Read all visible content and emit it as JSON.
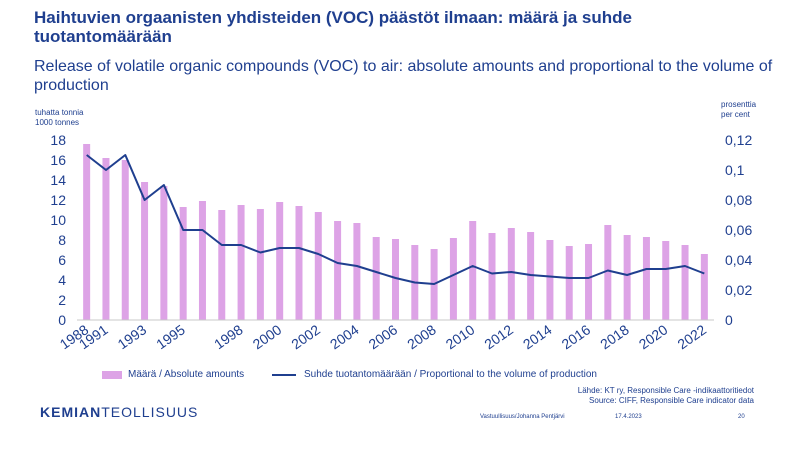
{
  "title_fi": "Haihtuvien orgaanisten yhdisteiden (VOC) päästöt ilmaan: määrä ja suhde tuotantomäärään",
  "title_en": "Release of volatile organic compounds (VOC) to air: absolute amounts and proportional to the volume of production",
  "left_unit": [
    "tuhatta tonnia",
    "1000 tonnes"
  ],
  "right_unit": [
    "prosenttia",
    "per cent"
  ],
  "legend": {
    "bars": "Määrä / Absolute amounts",
    "line": "Suhde tuotantomäärään / Proportional to the volume of production"
  },
  "source": {
    "line1": "Lähde: KT ry, Responsible Care -indikaattoritiedot",
    "line2": "Source: CIFF, Responsible Care indicator data"
  },
  "logo": {
    "bold": "KEMIAN",
    "normal": "TEOLLISUUS"
  },
  "footer": {
    "author": "Vastuullisuus/Johanna Pentjärvi",
    "date": "17.4.2023",
    "page": "20"
  },
  "colors": {
    "bars": "#dda3e6",
    "line": "#1f3f8f",
    "text": "#1f3f8f"
  },
  "chart_data": {
    "type": "bar",
    "years": [
      1988,
      1991,
      1992,
      1993,
      1994,
      1995,
      1996,
      1997,
      1998,
      1999,
      2000,
      2001,
      2002,
      2003,
      2004,
      2005,
      2006,
      2007,
      2008,
      2009,
      2010,
      2011,
      2012,
      2013,
      2014,
      2015,
      2016,
      2017,
      2018,
      2019,
      2020,
      2021,
      2022
    ],
    "x_tick_labels": [
      "1988",
      "1991",
      "1993",
      "1995",
      "1998",
      "2000",
      "2002",
      "2004",
      "2006",
      "2008",
      "2010",
      "2012",
      "2014",
      "2016",
      "2018",
      "2020",
      "2022"
    ],
    "series": [
      {
        "name": "Määrä / Absolute amounts",
        "axis": "left",
        "type": "bar",
        "values": [
          17.6,
          16.2,
          16.0,
          13.8,
          13.4,
          11.3,
          11.9,
          11.0,
          11.5,
          11.1,
          11.8,
          11.4,
          10.8,
          9.9,
          9.7,
          8.3,
          8.1,
          7.5,
          7.1,
          8.2,
          9.9,
          8.7,
          9.2,
          8.8,
          8.0,
          7.4,
          7.6,
          9.5,
          8.5,
          8.3,
          7.9,
          7.5,
          6.6
        ]
      },
      {
        "name": "Suhde tuotantomäärään / Proportional to the volume of production",
        "axis": "right",
        "type": "line",
        "values": [
          0.11,
          0.1,
          0.11,
          0.08,
          0.09,
          0.06,
          0.06,
          0.05,
          0.05,
          0.045,
          0.048,
          0.048,
          0.044,
          0.038,
          0.036,
          0.032,
          0.028,
          0.025,
          0.024,
          0.03,
          0.036,
          0.031,
          0.032,
          0.03,
          0.029,
          0.028,
          0.028,
          0.033,
          0.03,
          0.034,
          0.034,
          0.036,
          0.031
        ]
      }
    ],
    "y_left": {
      "min": 0,
      "max": 18,
      "ticks": [
        0,
        2,
        4,
        6,
        8,
        10,
        12,
        14,
        16,
        18
      ]
    },
    "y_right": {
      "min": 0,
      "max": 0.12,
      "ticks": [
        "0",
        "0,02",
        "0,04",
        "0,06",
        "0,08",
        "0,1",
        "0,12"
      ]
    },
    "grid": false,
    "legend_position": "bottom"
  }
}
